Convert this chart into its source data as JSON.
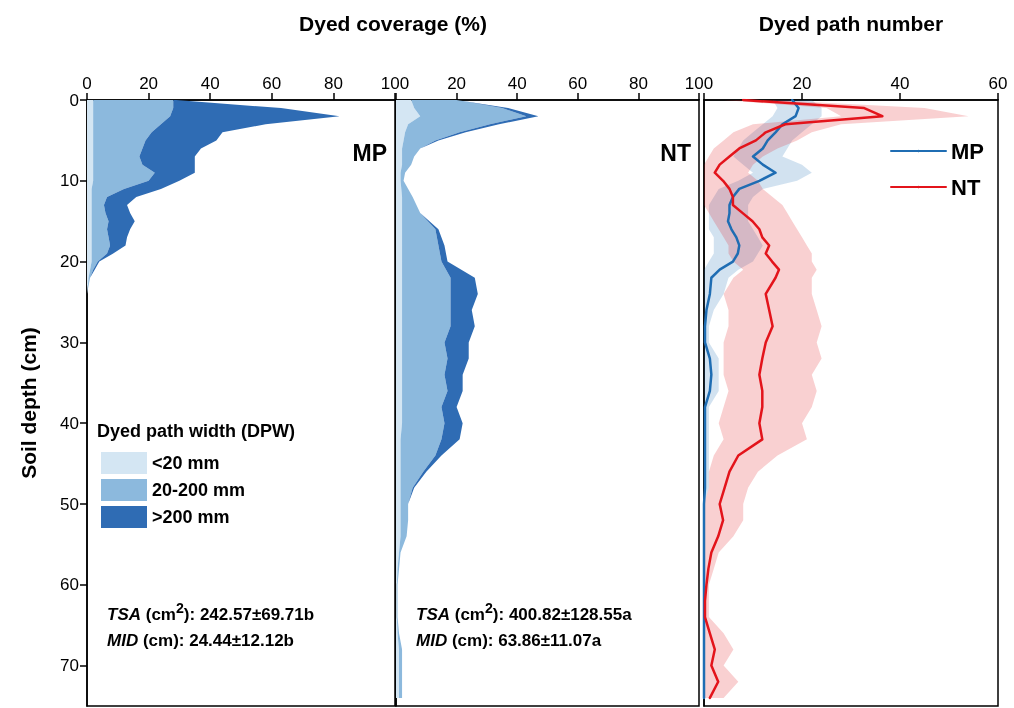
{
  "chart_data": [
    {
      "type": "area",
      "orientation": "horizontal",
      "stacked": true,
      "xlabel": "Dyed coverage (%)",
      "ylabel": "Soil depth (cm)",
      "xlim": [
        0,
        100
      ],
      "xticks": [
        0,
        20,
        40,
        60,
        80,
        100
      ],
      "ylim": [
        75,
        0
      ],
      "yticks": [
        0,
        10,
        20,
        30,
        40,
        50,
        60,
        70
      ],
      "legend": "bottom left",
      "legend_title": "Dyed path width (DPW)",
      "annotations": [
        "MP",
        "TSA (cm$^{2}$): 242.57±69.71b",
        "MID (cm): 24.44±12.12b"
      ],
      "x": [
        0,
        1,
        2,
        3,
        4,
        5,
        6,
        7,
        8,
        9,
        10,
        11,
        12,
        13,
        14,
        15,
        16,
        17,
        18,
        19,
        20,
        21,
        22,
        23,
        24,
        25,
        75
      ],
      "series": [
        {
          "name": "<20 mm",
          "color": "#d4e6f3",
          "values": [
            2,
            2,
            2,
            2,
            2,
            2,
            2,
            2,
            2,
            2,
            2,
            1.5,
            1.5,
            1.5,
            1.5,
            1.5,
            1.5,
            1.5,
            1.5,
            1.5,
            1.5,
            1,
            0.5,
            0.3,
            0,
            0,
            0
          ]
        },
        {
          "name": "20-200 mm",
          "color": "#8cb9dd",
          "values": [
            26,
            26,
            25,
            22,
            19,
            17,
            16,
            15,
            16,
            20,
            18,
            10.5,
            5,
            4,
            4.5,
            5.5,
            5,
            5.5,
            6,
            5,
            2,
            1,
            0.5,
            0.2,
            0,
            0,
            0
          ]
        },
        {
          "name": ">200 mm",
          "color": "#2f6cb4",
          "values": [
            1,
            35,
            55,
            34,
            23,
            23,
            19,
            18,
            17,
            13,
            10,
            12,
            9.5,
            7.5,
            8,
            8.5,
            7.5,
            6,
            5,
            2,
            0.5,
            0.5,
            0,
            0,
            0,
            0,
            0
          ]
        }
      ]
    },
    {
      "type": "area",
      "orientation": "horizontal",
      "stacked": true,
      "xlim": [
        0,
        100
      ],
      "xticks": [
        {
          "value": 0,
          "label": null
        },
        20,
        40,
        60,
        80,
        100
      ],
      "ylim": [
        75,
        0
      ],
      "tick_labels": "x",
      "annotations": [
        "NT",
        "TSA (cm$^{2}$): 400.82±128.55a",
        "MID (cm): 63.86±11.07a"
      ],
      "x": [
        0,
        1,
        2,
        3,
        4,
        5,
        6,
        7,
        8,
        9,
        10,
        12,
        14,
        16,
        18,
        20,
        22,
        24,
        26,
        28,
        30,
        32,
        34,
        36,
        38,
        40,
        42,
        44,
        46,
        48,
        50,
        52,
        54,
        56,
        58,
        60,
        62,
        64,
        66,
        68,
        70,
        72,
        74
      ],
      "series": [
        {
          "color": "#d4e6f3",
          "values": [
            5,
            6,
            8,
            4,
            3,
            2.5,
            2,
            2,
            2,
            1.5,
            1.5,
            2,
            2,
            2,
            2,
            2,
            2,
            2,
            2,
            2,
            2,
            2,
            2,
            2,
            2,
            2,
            1.5,
            1.5,
            1.5,
            1.5,
            1.5,
            1.5,
            1.5,
            1,
            0.5,
            0.3,
            0.3,
            0.3,
            0.5,
            1,
            1,
            1,
            1
          ]
        },
        {
          "color": "#8cb9dd",
          "values": [
            15,
            29,
            35,
            27,
            18,
            10.5,
            6,
            4,
            3,
            1.5,
            1,
            3.5,
            6,
            11,
            12,
            13,
            16,
            16,
            16,
            16,
            14,
            15,
            14,
            15,
            13,
            14,
            13.5,
            11.5,
            7.5,
            4,
            2.5,
            2.5,
            2,
            0.5,
            0.5,
            0.2,
            0.2,
            0.2,
            0.5,
            1,
            1,
            1,
            1
          ]
        },
        {
          "color": "#2f6cb4",
          "values": [
            0,
            2,
            4,
            3,
            2,
            1,
            0,
            0,
            0,
            0,
            0,
            0,
            0,
            1,
            2,
            2,
            8,
            9,
            7,
            8,
            8,
            7,
            6,
            5,
            5,
            6,
            6,
            2,
            1,
            0.5,
            0,
            0,
            0,
            0,
            0,
            0,
            0,
            0,
            0,
            0,
            0,
            0,
            0
          ]
        }
      ]
    },
    {
      "type": "line",
      "orientation": "horizontal",
      "xlabel": "Dyed path number",
      "xlim": [
        0,
        60
      ],
      "xticks": [
        {
          "value": 0,
          "label": null
        },
        20,
        40,
        60
      ],
      "ylim": [
        75,
        0
      ],
      "tick_labels": "x",
      "legend": "top right",
      "x": [
        0,
        1,
        2,
        3,
        4,
        5,
        6,
        7,
        8,
        9,
        10,
        11,
        12,
        13,
        14,
        15,
        16,
        17,
        18,
        19,
        20,
        21,
        22,
        24,
        26,
        28,
        30,
        32,
        34,
        36,
        38,
        40,
        42,
        44,
        46,
        48,
        50,
        52,
        54,
        56,
        58,
        60,
        62,
        64,
        66,
        68,
        70,
        72,
        74
      ],
      "series": [
        {
          "name": "MP",
          "color": "#1f6db3",
          "values": [
            18,
            19.3,
            18.7,
            16,
            14.6,
            13,
            12,
            10,
            12,
            14.6,
            11.3,
            7.2,
            5.9,
            5.2,
            5.2,
            4.9,
            5.6,
            6.6,
            7.2,
            6.9,
            5.9,
            3.2,
            1.5,
            1.2,
            0.5,
            0.2,
            0.2,
            1.2,
            1.5,
            1.2,
            0.2,
            0.2,
            0.2,
            0.2,
            0.2,
            0.2,
            0,
            0,
            0,
            0,
            0,
            0,
            0,
            0,
            0,
            0,
            0,
            0,
            0
          ],
          "lower": [
            14,
            15,
            14,
            12,
            10,
            8,
            7,
            6,
            8,
            10,
            7,
            3,
            2,
            1,
            1,
            1,
            1,
            2,
            2,
            2,
            1,
            0,
            0,
            0,
            0,
            0,
            0,
            0,
            0,
            0,
            0,
            0,
            0,
            0,
            0,
            0,
            0,
            0,
            0,
            0,
            0,
            0,
            0,
            0,
            0,
            0,
            0,
            0,
            0
          ],
          "upper": [
            22,
            24,
            24,
            22,
            20,
            18,
            17,
            16,
            20,
            22,
            19,
            12,
            10,
            9,
            9,
            9,
            10,
            11,
            12,
            11,
            10,
            7,
            5,
            4,
            2,
            1,
            1,
            3,
            3,
            3,
            1,
            1,
            1,
            1,
            1,
            1,
            0,
            0,
            0,
            0,
            0,
            0,
            0,
            0,
            0,
            0,
            0,
            0,
            0
          ]
        },
        {
          "name": "NT",
          "color": "#e3141b",
          "values": [
            8,
            32.7,
            36.4,
            16.6,
            12.6,
            10.6,
            7.2,
            5.2,
            3.2,
            2.2,
            3.9,
            5.2,
            5.9,
            5.9,
            7.9,
            9.9,
            11.3,
            11.9,
            13.3,
            12.6,
            13.9,
            15.3,
            14.6,
            12.6,
            13.3,
            14,
            12.6,
            11.9,
            11.3,
            11.9,
            11.9,
            11.3,
            11.9,
            7,
            5.2,
            4.2,
            3.2,
            3.9,
            2.9,
            1.5,
            0.9,
            0.5,
            0.2,
            0.2,
            1.2,
            2.2,
            1.5,
            2.9,
            1.2
          ],
          "lower": [
            4,
            25,
            28,
            10,
            6,
            4,
            2,
            1,
            0,
            0,
            0,
            0,
            0,
            0,
            1,
            2,
            3,
            4,
            5,
            5,
            6,
            8,
            6,
            4,
            5,
            5,
            4,
            4,
            4,
            5,
            4,
            3,
            4,
            2,
            1,
            1,
            0,
            0,
            0,
            0,
            0,
            0,
            0,
            0,
            0,
            0,
            0,
            0,
            0
          ],
          "upper": [
            14,
            45,
            54,
            28,
            22,
            19,
            15,
            12,
            10,
            9,
            11,
            12,
            14,
            16,
            17,
            18,
            19,
            20,
            21,
            22,
            22,
            23,
            22,
            22,
            23,
            24,
            23,
            24,
            22,
            23,
            22,
            20,
            21,
            15,
            11,
            9,
            8,
            8,
            6,
            3,
            2,
            1,
            1,
            1,
            4,
            6,
            4,
            7,
            4
          ]
        }
      ]
    }
  ]
}
